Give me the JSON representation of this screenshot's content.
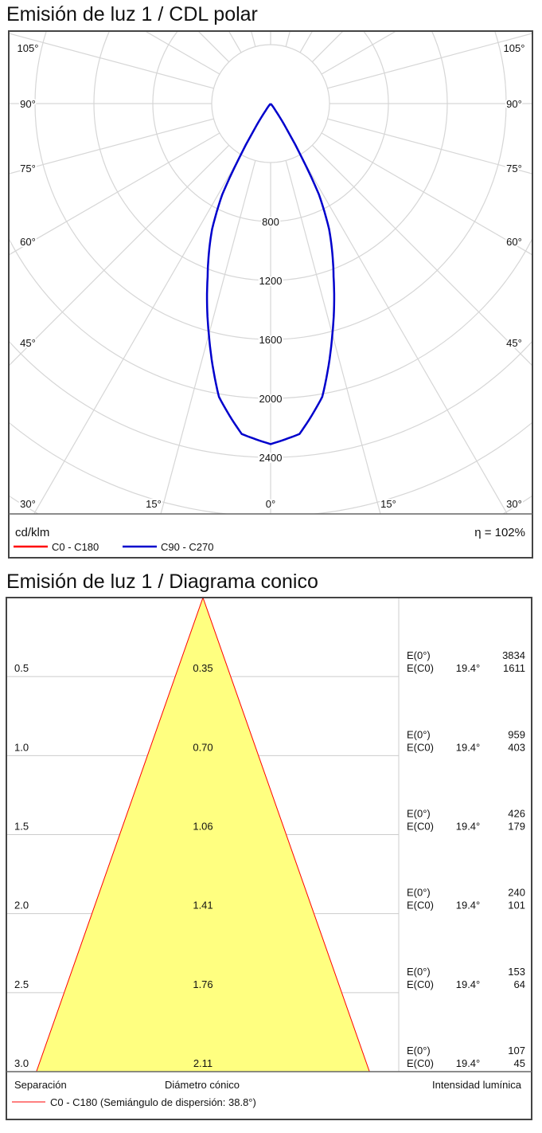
{
  "chart_data": [
    {
      "type": "polar",
      "title": "Emisión de luz 1 / CDL polar",
      "unit_label": "cd/klm",
      "efficiency_label": "η = 102%",
      "radial_ticks": [
        800,
        1200,
        1600,
        2000,
        2400
      ],
      "radial_ring_step": 400,
      "angle_labels_left": [
        "105°",
        "90°",
        "75°",
        "60°",
        "45°",
        "30°",
        "15°"
      ],
      "angle_labels_center": "0°",
      "angle_labels_right": [
        "15°",
        "30°",
        "45°",
        "60°",
        "75°",
        "90°",
        "105°"
      ],
      "grid": true,
      "legend": [
        {
          "name": "C0 - C180",
          "color": "#ff0000"
        },
        {
          "name": "C90 - C270",
          "color": "#0000cc"
        }
      ],
      "series": [
        {
          "name": "C90 - C270",
          "color": "#0000cc",
          "angles_deg": [
            0,
            5,
            10,
            15,
            20,
            25,
            28,
            30,
            32,
            35,
            40,
            90
          ],
          "values": [
            2310,
            2250,
            2020,
            1620,
            1250,
            940,
            700,
            430,
            220,
            60,
            0,
            0
          ]
        }
      ]
    },
    {
      "type": "cone",
      "title": "Emisión de luz 1 / Diagrama conico",
      "xlabel_left": "Separación",
      "xlabel_center": "Diámetro cónico",
      "xlabel_right": "Intensidad lumínica",
      "legend": "C0 - C180 (Semiángulo de dispersión: 38.8°)",
      "legend_color": "#ff0000",
      "fill_color": "#ffff80",
      "rows": [
        {
          "distance": "0.5",
          "diameter": "0.35",
          "e0_label": "E(0°)",
          "e0": "3834",
          "ec_label": "E(C0)",
          "angle": "19.4°",
          "ec": "1611"
        },
        {
          "distance": "1.0",
          "diameter": "0.70",
          "e0_label": "E(0°)",
          "e0": "959",
          "ec_label": "E(C0)",
          "angle": "19.4°",
          "ec": "403"
        },
        {
          "distance": "1.5",
          "diameter": "1.06",
          "e0_label": "E(0°)",
          "e0": "426",
          "ec_label": "E(C0)",
          "angle": "19.4°",
          "ec": "179"
        },
        {
          "distance": "2.0",
          "diameter": "1.41",
          "e0_label": "E(0°)",
          "e0": "240",
          "ec_label": "E(C0)",
          "angle": "19.4°",
          "ec": "101"
        },
        {
          "distance": "2.5",
          "diameter": "1.76",
          "e0_label": "E(0°)",
          "e0": "153",
          "ec_label": "E(C0)",
          "angle": "19.4°",
          "ec": "64"
        },
        {
          "distance": "3.0",
          "diameter": "2.11",
          "e0_label": "E(0°)",
          "e0": "107",
          "ec_label": "E(C0)",
          "angle": "19.4°",
          "ec": "45"
        }
      ],
      "max_distance": 3.0
    }
  ]
}
